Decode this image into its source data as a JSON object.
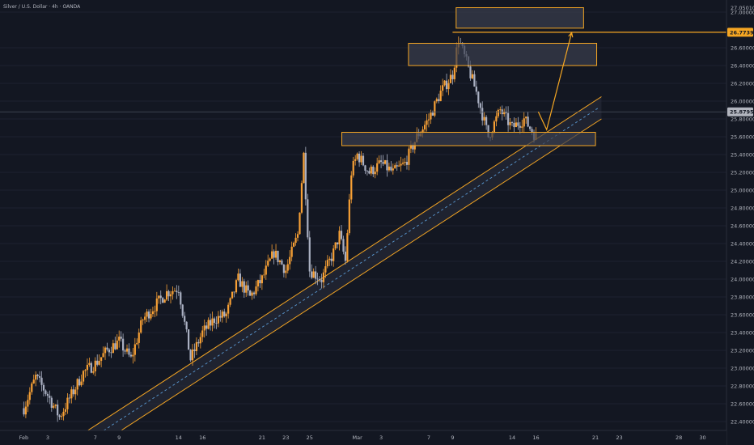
{
  "header": {
    "symbol_title": "Silver / U.S. Dollar · 4h · OANDA"
  },
  "colors": {
    "background": "#131722",
    "up": "#f7a035",
    "down": "#aab0c2",
    "zone_stroke": "#f5a623",
    "zone_fill": "#3a3e4d",
    "channel": "#f5a623",
    "channel_mid": "#5b9bd5",
    "price_line": "#4a4f5e",
    "target_badge": "#f5a623",
    "current_badge": "#b2b5be"
  },
  "chart_data": {
    "type": "candlestick",
    "y_axis": {
      "ylim": [
        22.3,
        27.1
      ],
      "ticks": [
        "22.40000",
        "22.60000",
        "22.80000",
        "23.00000",
        "23.20000",
        "23.40000",
        "23.60000",
        "23.80000",
        "24.00000",
        "24.20000",
        "24.40000",
        "24.60000",
        "24.80000",
        "25.00000",
        "25.20000",
        "25.40000",
        "25.60000",
        "25.80000",
        "26.00000",
        "26.20000",
        "26.40000",
        "26.60000",
        "27.00000"
      ],
      "top_label": "27.05010"
    },
    "x_axis": {
      "labels": [
        {
          "text": "Feb",
          "day_index": 0
        },
        {
          "text": "3",
          "day_index": 2
        },
        {
          "text": "7",
          "day_index": 6
        },
        {
          "text": "9",
          "day_index": 8
        },
        {
          "text": "14",
          "day_index": 13
        },
        {
          "text": "16",
          "day_index": 15
        },
        {
          "text": "21",
          "day_index": 20
        },
        {
          "text": "23",
          "day_index": 22
        },
        {
          "text": "25",
          "day_index": 24
        },
        {
          "text": "Mar",
          "day_index": 28
        },
        {
          "text": "3",
          "day_index": 30
        },
        {
          "text": "7",
          "day_index": 34
        },
        {
          "text": "9",
          "day_index": 36
        },
        {
          "text": "14",
          "day_index": 41
        },
        {
          "text": "16",
          "day_index": 43
        },
        {
          "text": "21",
          "day_index": 48
        },
        {
          "text": "23",
          "day_index": 50
        },
        {
          "text": "28",
          "day_index": 55
        },
        {
          "text": "30",
          "day_index": 57
        }
      ],
      "day_range": [
        -2,
        59
      ]
    },
    "price_path": [
      [
        0,
        22.55
      ],
      [
        1,
        22.9
      ],
      [
        2,
        22.7
      ],
      [
        3,
        22.45
      ],
      [
        4,
        22.7
      ],
      [
        5,
        22.95
      ],
      [
        6,
        23.05
      ],
      [
        7,
        23.2
      ],
      [
        8,
        23.3
      ],
      [
        9,
        23.1
      ],
      [
        10,
        23.55
      ],
      [
        11,
        23.7
      ],
      [
        12,
        23.85
      ],
      [
        13,
        23.9
      ],
      [
        14,
        23.1
      ],
      [
        15,
        23.4
      ],
      [
        16,
        23.55
      ],
      [
        17,
        23.6
      ],
      [
        18,
        24.0
      ],
      [
        19,
        23.8
      ],
      [
        20,
        24.0
      ],
      [
        21,
        24.3
      ],
      [
        22,
        24.1
      ],
      [
        23,
        24.5
      ],
      [
        23.5,
        25.4
      ],
      [
        24,
        24.1
      ],
      [
        25,
        24.0
      ],
      [
        26,
        24.3
      ],
      [
        26.5,
        24.5
      ],
      [
        27,
        24.2
      ],
      [
        27.5,
        25.2
      ],
      [
        28,
        25.4
      ],
      [
        29,
        25.2
      ],
      [
        30,
        25.3
      ],
      [
        31,
        25.2
      ],
      [
        32,
        25.3
      ],
      [
        33,
        25.6
      ],
      [
        34,
        25.8
      ],
      [
        35,
        26.1
      ],
      [
        36,
        26.3
      ],
      [
        36.5,
        26.7
      ],
      [
        37,
        26.5
      ],
      [
        38,
        26.1
      ],
      [
        39,
        25.6
      ],
      [
        40,
        25.9
      ],
      [
        41,
        25.7
      ],
      [
        42,
        25.8
      ],
      [
        43,
        25.6
      ]
    ],
    "zones": [
      {
        "name": "resistance-zone-top",
        "x1": 36.3,
        "x2": 47.0,
        "y1": 26.82,
        "y2": 27.05
      },
      {
        "name": "resistance-zone-mid",
        "x1": 32.3,
        "x2": 48.1,
        "y1": 26.4,
        "y2": 26.65
      },
      {
        "name": "support-zone",
        "x1": 26.7,
        "x2": 48.0,
        "y1": 25.5,
        "y2": 25.65
      }
    ],
    "channel": {
      "upper": {
        "x1": 4.8,
        "y1": 22.25,
        "x2": 48.5,
        "y2": 26.05
      },
      "lower": {
        "x1": 5.3,
        "y1": 22.05,
        "x2": 48.5,
        "y2": 25.8
      },
      "mid": {
        "x1": 5.0,
        "y1": 22.15,
        "x2": 48.2,
        "y2": 25.92
      }
    },
    "target_line": {
      "price": 26.7739,
      "label": "26.77390",
      "from_day": 36.0
    },
    "current_price": {
      "price": 25.8795,
      "label": "25.87950"
    },
    "projection_arrow": [
      [
        43.2,
        25.88
      ],
      [
        43.9,
        25.68
      ],
      [
        46.0,
        26.77
      ]
    ]
  }
}
